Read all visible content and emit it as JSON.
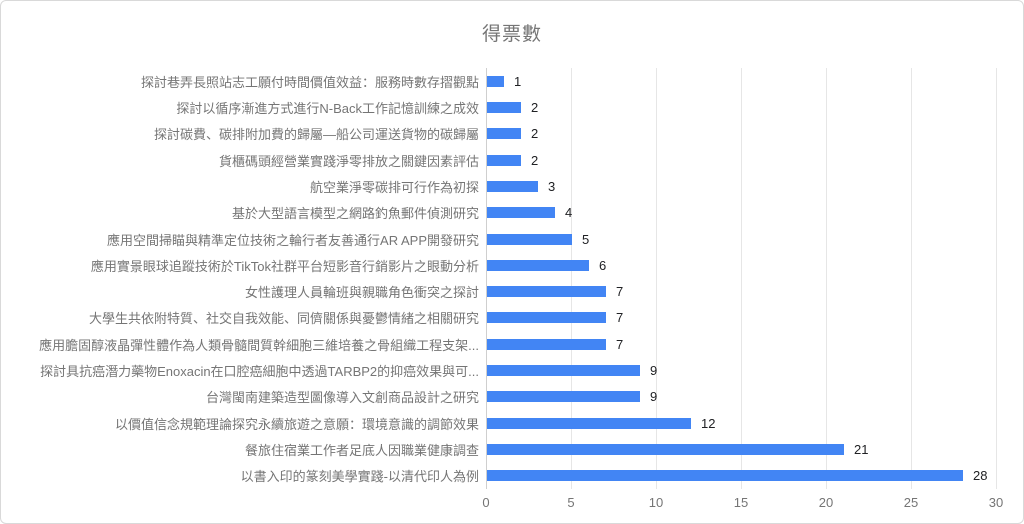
{
  "chart_data": {
    "type": "bar",
    "orientation": "horizontal",
    "title": "得票數",
    "categories": [
      "探討巷弄長照站志工願付時間價值效益：服務時數存摺觀點",
      "探討以循序漸進方式進行N-Back工作記憶訓練之成效",
      "探討碳費、碳排附加費的歸屬—船公司運送貨物的碳歸屬",
      "貨櫃碼頭經營業實踐淨零排放之關鍵因素評估",
      "航空業淨零碳排可行作為初探",
      "基於大型語言模型之網路釣魚郵件偵測研究",
      "應用空間掃瞄與精準定位技術之輪行者友善通行AR APP開發研究",
      "應用實景眼球追蹤技術於TikTok社群平台短影音行銷影片之眼動分析",
      "女性護理人員輪班與親職角色衝突之探討",
      "大學生共依附特質、社交自我效能、同儕關係與憂鬱情緒之相關研究",
      "應用膽固醇液晶彈性體作為人類骨髓間質幹細胞三維培養之骨組織工程支架...",
      "探討具抗癌潛力藥物Enoxacin在口腔癌細胞中透過TARBP2的抑癌效果與可...",
      "台灣閩南建築造型圖像導入文創商品設計之研究",
      "以價值信念規範理論探究永續旅遊之意願：環境意識的調節效果",
      "餐旅住宿業工作者足底人因職業健康調查",
      "以書入印的篆刻美學實踐-以清代印人為例"
    ],
    "values": [
      1,
      2,
      2,
      2,
      3,
      4,
      5,
      6,
      7,
      7,
      7,
      9,
      9,
      12,
      21,
      28
    ],
    "x_ticks": [
      0,
      5,
      10,
      15,
      20,
      25,
      30
    ],
    "xlim": [
      0,
      30
    ],
    "grid": true,
    "legend_position": "none",
    "colors": {
      "bar": "#4285f4",
      "gridline": "#e6e6e6",
      "zero_line": "#cfcfcf",
      "category_label": "#757575",
      "value_label": "#202124",
      "axis_tick_label": "#757575",
      "title": "#757575",
      "border": "#d9d9d9",
      "background": "#ffffff"
    }
  }
}
